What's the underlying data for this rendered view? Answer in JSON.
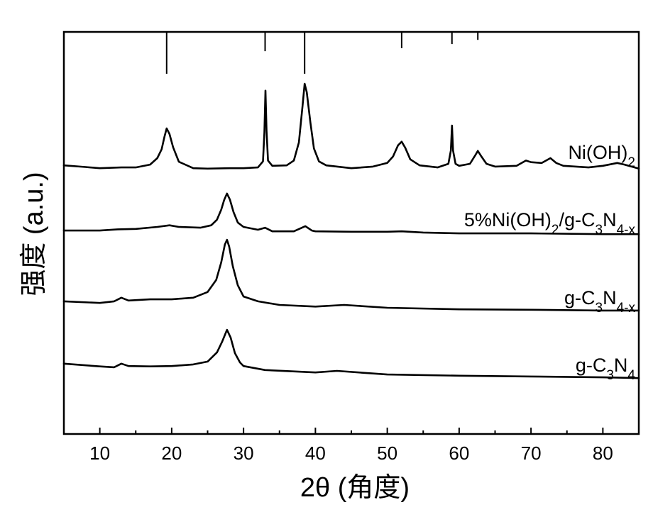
{
  "chart_data": {
    "type": "line",
    "xlabel": "2θ (角度)",
    "ylabel": "强度 (a.u.)",
    "xlim": [
      5,
      85
    ],
    "ylim": [
      0,
      100
    ],
    "xticks": [
      10,
      20,
      30,
      40,
      50,
      60,
      70,
      80
    ],
    "xminor_step": 5,
    "grid": false,
    "legend": "inline-right",
    "reference_lines": [
      {
        "x": 19.3,
        "relative_intensity": 100
      },
      {
        "x": 33.0,
        "relative_intensity": 46
      },
      {
        "x": 38.5,
        "relative_intensity": 100
      },
      {
        "x": 52.0,
        "relative_intensity": 39
      },
      {
        "x": 59.0,
        "relative_intensity": 29
      },
      {
        "x": 62.6,
        "relative_intensity": 19
      }
    ],
    "series": [
      {
        "name_parts": [
          {
            "text": "Ni(OH)",
            "sub": false
          },
          {
            "text": "2",
            "sub": true
          }
        ],
        "color": "#000000",
        "points": [
          [
            5,
            66.8
          ],
          [
            8,
            66.4
          ],
          [
            10,
            66.1
          ],
          [
            13,
            66.3
          ],
          [
            15,
            66.3
          ],
          [
            17,
            67.0
          ],
          [
            18,
            68.6
          ],
          [
            18.6,
            70.8
          ],
          [
            19.0,
            74.0
          ],
          [
            19.3,
            76.0
          ],
          [
            19.7,
            74.6
          ],
          [
            20.2,
            71.3
          ],
          [
            21,
            67.7
          ],
          [
            23,
            66.1
          ],
          [
            25,
            66.0
          ],
          [
            28,
            66.1
          ],
          [
            30,
            66.1
          ],
          [
            32,
            66.3
          ],
          [
            32.7,
            67.8
          ],
          [
            32.9,
            75.0
          ],
          [
            33.05,
            85.4
          ],
          [
            33.2,
            75.5
          ],
          [
            33.4,
            68.0
          ],
          [
            34,
            66.7
          ],
          [
            36,
            66.8
          ],
          [
            37.0,
            68.0
          ],
          [
            37.7,
            72.5
          ],
          [
            38.2,
            81.5
          ],
          [
            38.5,
            87.1
          ],
          [
            38.8,
            85.0
          ],
          [
            39.3,
            77.5
          ],
          [
            39.8,
            71.0
          ],
          [
            40.5,
            67.8
          ],
          [
            41.5,
            66.8
          ],
          [
            45,
            66.1
          ],
          [
            48,
            66.5
          ],
          [
            50,
            67.4
          ],
          [
            50.8,
            69.0
          ],
          [
            51.5,
            71.8
          ],
          [
            52.0,
            72.7
          ],
          [
            52.5,
            71.2
          ],
          [
            53.2,
            68.3
          ],
          [
            54.5,
            66.8
          ],
          [
            57,
            66.3
          ],
          [
            58.5,
            67.2
          ],
          [
            58.85,
            70.5
          ],
          [
            59.0,
            76.7
          ],
          [
            59.15,
            70.5
          ],
          [
            59.5,
            67.2
          ],
          [
            60,
            66.7
          ],
          [
            61.5,
            67.2
          ],
          [
            62.2,
            69.2
          ],
          [
            62.6,
            70.4
          ],
          [
            63.1,
            69.0
          ],
          [
            63.8,
            67.2
          ],
          [
            65,
            66.5
          ],
          [
            68,
            66.7
          ],
          [
            69.3,
            68.0
          ],
          [
            70,
            67.6
          ],
          [
            71.5,
            67.4
          ],
          [
            72.7,
            68.6
          ],
          [
            73.5,
            67.4
          ],
          [
            74.5,
            66.7
          ],
          [
            78,
            66.3
          ],
          [
            80,
            66.7
          ],
          [
            82,
            67.4
          ],
          [
            83,
            67.0
          ],
          [
            85,
            66.0
          ]
        ]
      },
      {
        "name_parts": [
          {
            "text": "5%Ni(OH)",
            "sub": false
          },
          {
            "text": "2",
            "sub": true
          },
          {
            "text": "/g-C",
            "sub": false
          },
          {
            "text": "3",
            "sub": true
          },
          {
            "text": "N",
            "sub": false
          },
          {
            "text": "4-x",
            "sub": true
          }
        ],
        "color": "#000000",
        "points": [
          [
            5,
            50.6
          ],
          [
            10,
            50.6
          ],
          [
            12.5,
            50.9
          ],
          [
            15,
            51.0
          ],
          [
            18,
            51.5
          ],
          [
            19.7,
            51.9
          ],
          [
            21,
            51.5
          ],
          [
            24,
            51.3
          ],
          [
            25.5,
            51.9
          ],
          [
            26.3,
            53.3
          ],
          [
            26.9,
            55.8
          ],
          [
            27.3,
            58.2
          ],
          [
            27.7,
            59.8
          ],
          [
            28.1,
            58.3
          ],
          [
            28.6,
            55.2
          ],
          [
            29.2,
            52.6
          ],
          [
            30,
            51.5
          ],
          [
            32,
            50.8
          ],
          [
            33,
            51.3
          ],
          [
            34,
            50.4
          ],
          [
            37,
            50.4
          ],
          [
            38.6,
            51.7
          ],
          [
            39.5,
            50.6
          ],
          [
            40,
            50.4
          ],
          [
            45,
            50.3
          ],
          [
            50,
            50.3
          ],
          [
            52,
            50.4
          ],
          [
            55,
            50.1
          ],
          [
            60,
            49.9
          ],
          [
            70,
            49.9
          ],
          [
            80,
            49.7
          ],
          [
            85,
            49.7
          ]
        ]
      },
      {
        "name_parts": [
          {
            "text": "g-C",
            "sub": false
          },
          {
            "text": "3",
            "sub": true
          },
          {
            "text": "N",
            "sub": false
          },
          {
            "text": "4-x",
            "sub": true
          }
        ],
        "color": "#000000",
        "points": [
          [
            5,
            33.0
          ],
          [
            10,
            32.6
          ],
          [
            12,
            33.0
          ],
          [
            13,
            33.9
          ],
          [
            14,
            33.2
          ],
          [
            17,
            33.5
          ],
          [
            20,
            33.5
          ],
          [
            23,
            33.9
          ],
          [
            25,
            35.3
          ],
          [
            26.2,
            38.3
          ],
          [
            26.9,
            42.7
          ],
          [
            27.4,
            47.1
          ],
          [
            27.7,
            48.3
          ],
          [
            28.0,
            46.6
          ],
          [
            28.5,
            41.8
          ],
          [
            29.2,
            37.0
          ],
          [
            30,
            34.2
          ],
          [
            32,
            33.0
          ],
          [
            35,
            32.1
          ],
          [
            40,
            31.7
          ],
          [
            44,
            32.1
          ],
          [
            50,
            31.4
          ],
          [
            60,
            31.0
          ],
          [
            70,
            30.9
          ],
          [
            80,
            30.7
          ],
          [
            85,
            30.7
          ]
        ]
      },
      {
        "name_parts": [
          {
            "text": "g-C",
            "sub": false
          },
          {
            "text": "3",
            "sub": true
          },
          {
            "text": "N",
            "sub": false
          },
          {
            "text": "4",
            "sub": true
          }
        ],
        "color": "#000000",
        "points": [
          [
            5,
            17.5
          ],
          [
            10,
            16.8
          ],
          [
            12,
            16.6
          ],
          [
            13,
            17.5
          ],
          [
            14,
            16.9
          ],
          [
            17,
            16.8
          ],
          [
            20,
            16.9
          ],
          [
            23,
            17.3
          ],
          [
            25,
            18.0
          ],
          [
            26.3,
            20.3
          ],
          [
            27.0,
            22.9
          ],
          [
            27.7,
            25.9
          ],
          [
            28.2,
            24.0
          ],
          [
            28.8,
            20.1
          ],
          [
            29.5,
            17.8
          ],
          [
            30,
            16.9
          ],
          [
            33,
            15.9
          ],
          [
            40,
            15.3
          ],
          [
            43,
            15.7
          ],
          [
            50,
            14.8
          ],
          [
            60,
            14.5
          ],
          [
            70,
            14.3
          ],
          [
            80,
            14.1
          ],
          [
            85,
            13.9
          ]
        ]
      }
    ]
  }
}
